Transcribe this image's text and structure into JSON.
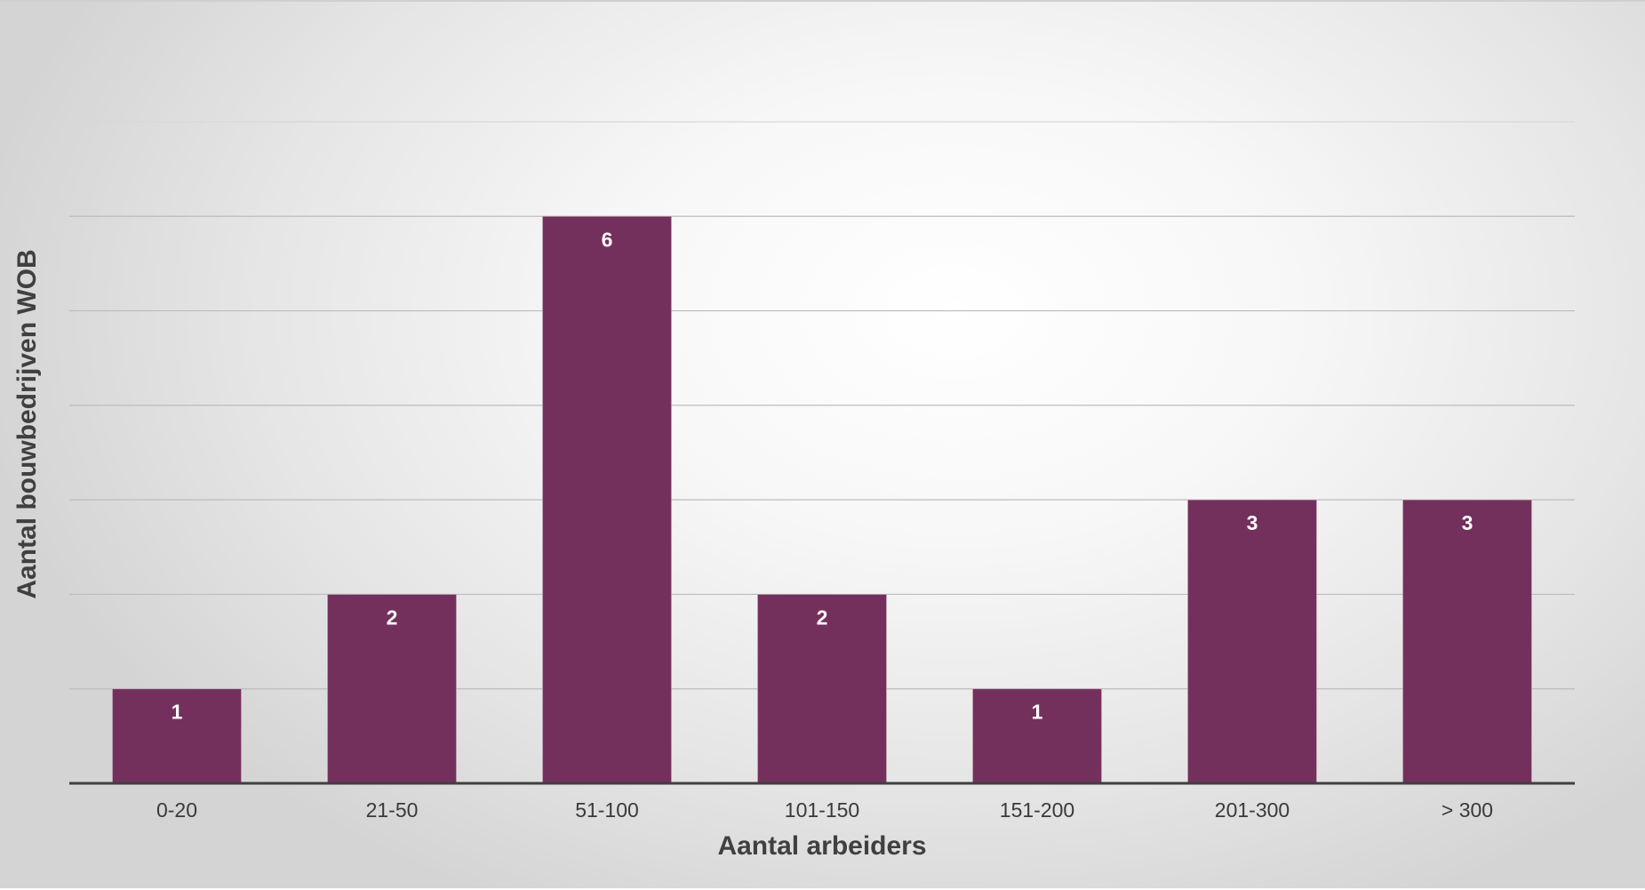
{
  "chart_data": {
    "type": "bar",
    "categories": [
      "0-20",
      "21-50",
      "51-100",
      "101-150",
      "151-200",
      "201-300",
      "> 300"
    ],
    "values": [
      1,
      2,
      6,
      2,
      1,
      3,
      3
    ],
    "data_labels": [
      "1",
      "2",
      "6",
      "2",
      "1",
      "3",
      "3"
    ],
    "title": "",
    "xlabel": "Aantal arbeiders",
    "ylabel": "Aantal bouwbedrijven WOB",
    "ylim": [
      0,
      7
    ],
    "grid": true,
    "legend": "none",
    "bar_color": "#74305c",
    "gridline_color": "#bcbcbc",
    "axis_color": "#404040"
  }
}
